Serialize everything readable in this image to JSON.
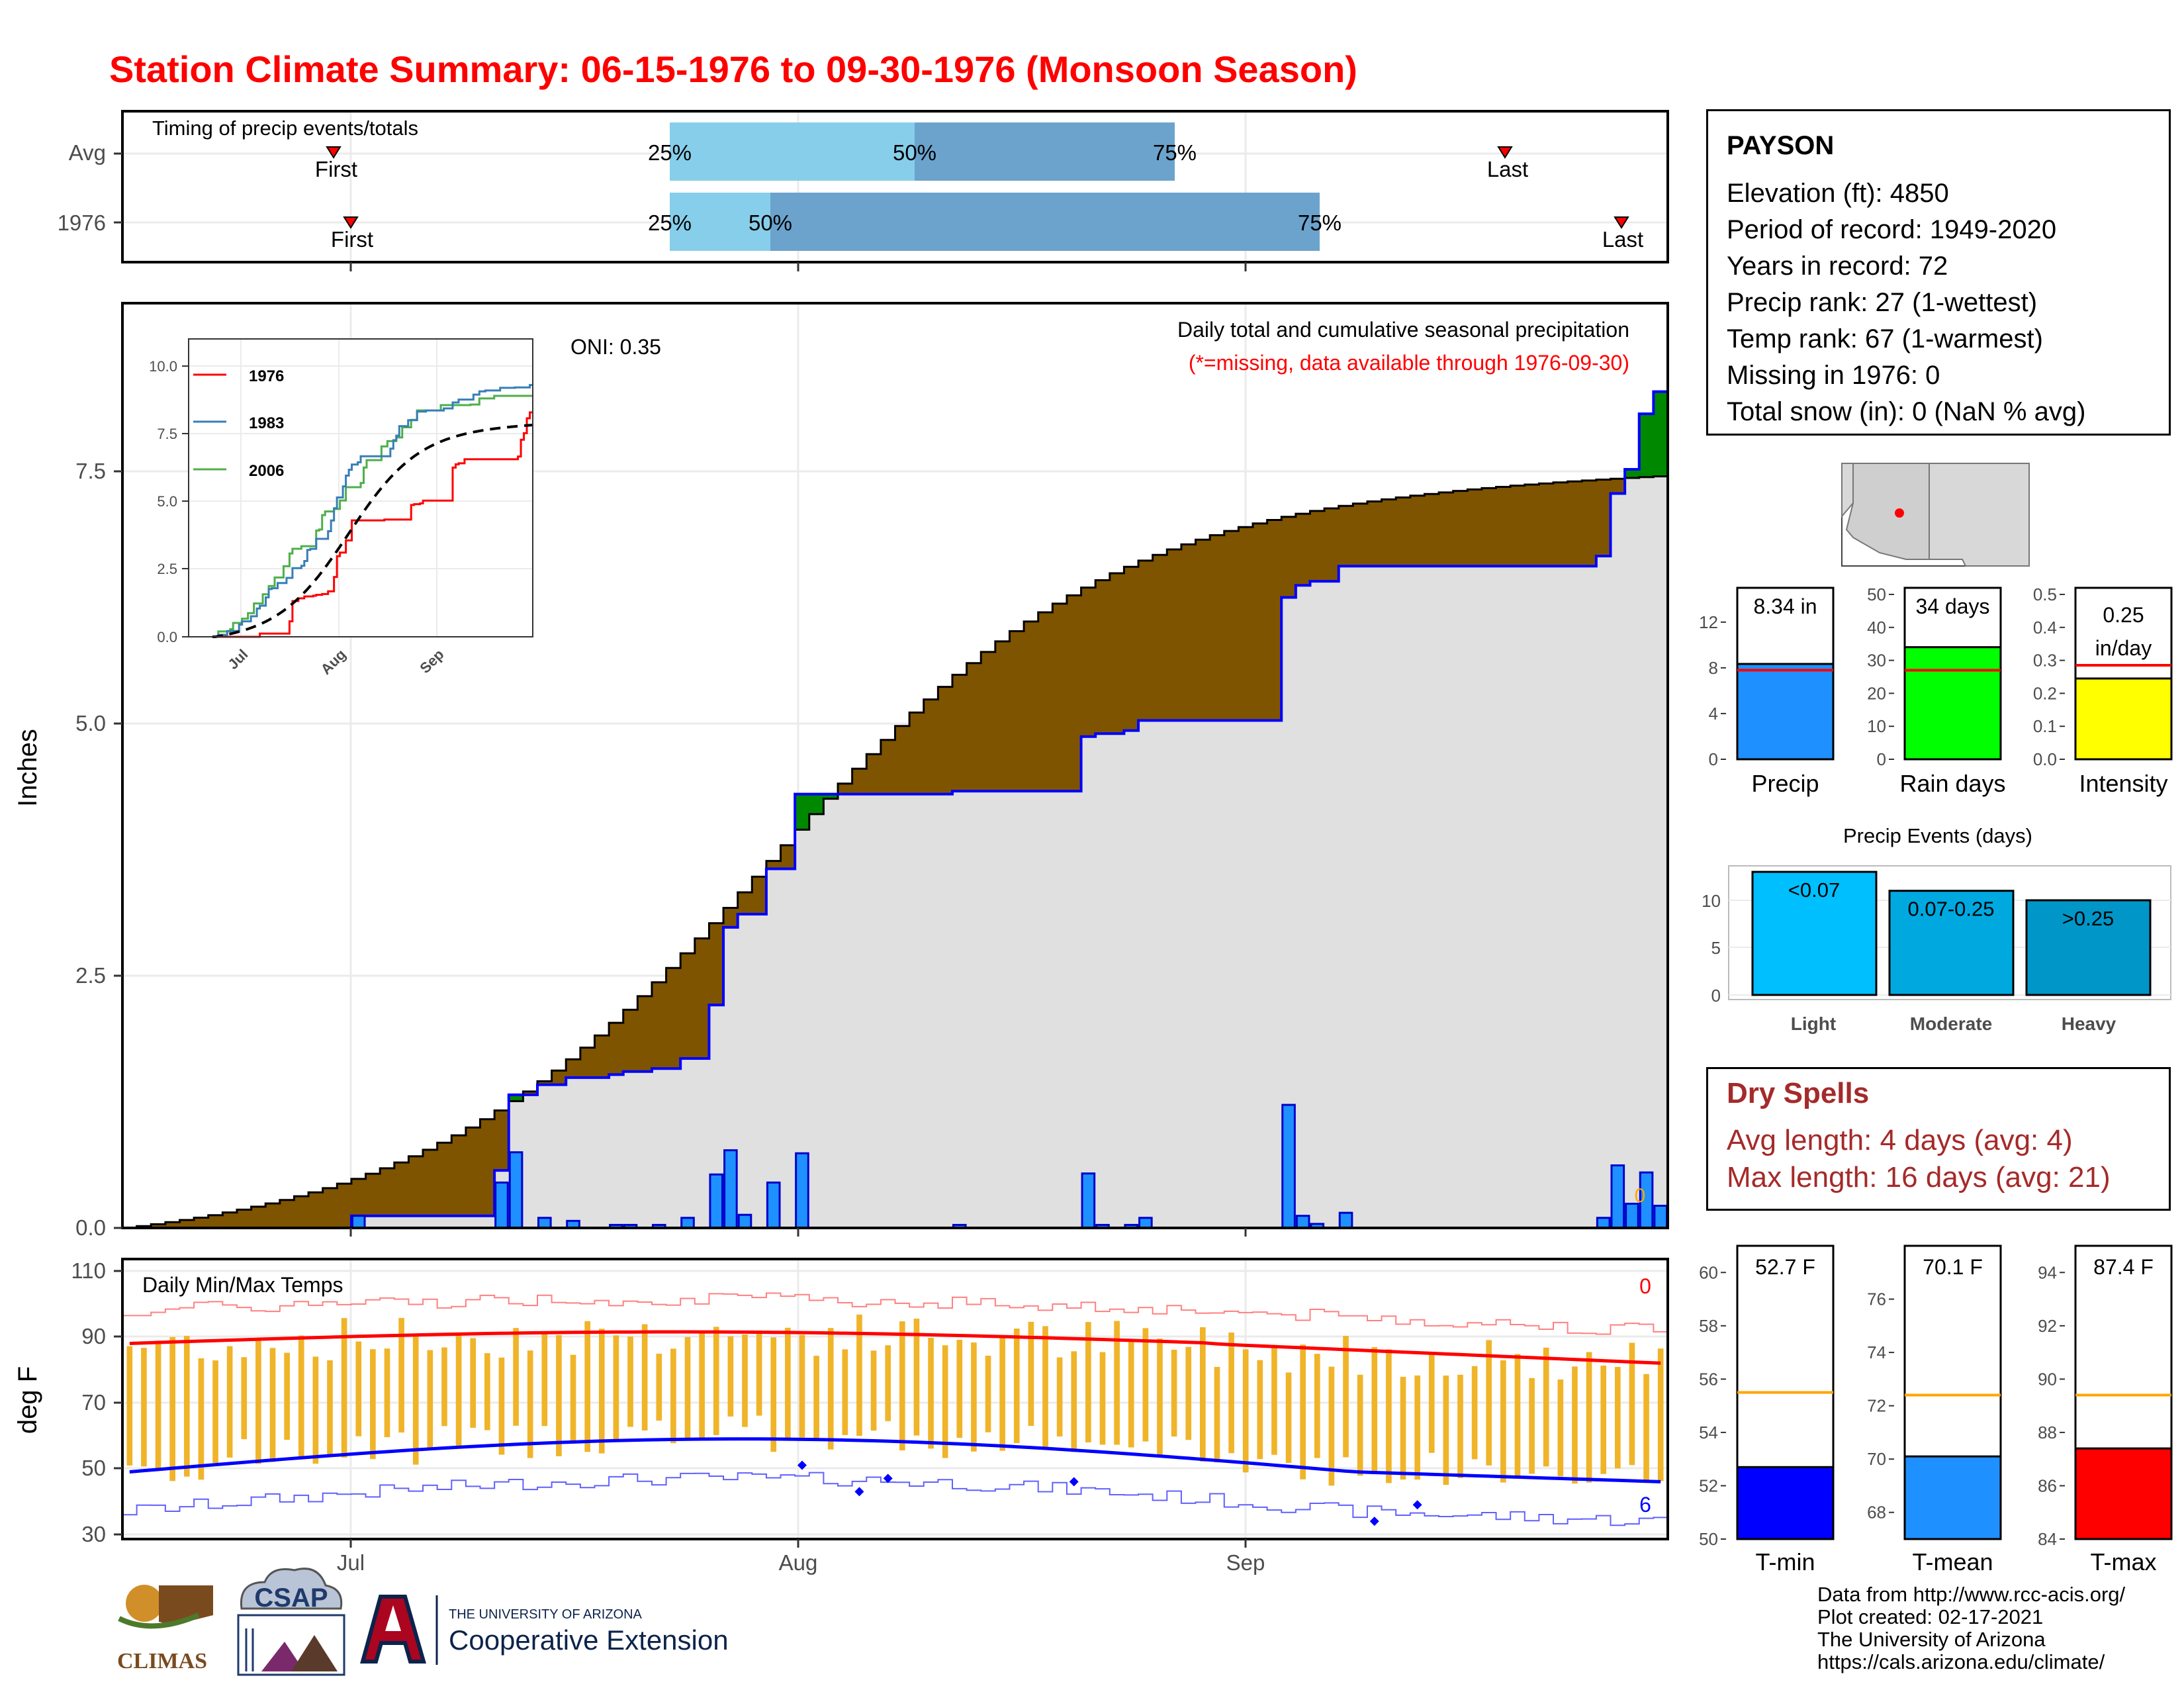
{
  "title": "Station Climate Summary: 06-15-1976 to 09-30-1976 (Monsoon Season)",
  "colors": {
    "title": "#ff0000",
    "light_blue": "#87ceeb",
    "steel_blue": "#6ba3cd",
    "surplus": "#008800",
    "deficit": "#7f5400",
    "cum_area": "#e0e0e0",
    "bar_blue": "#1e90ff",
    "tmin": "#0000ff",
    "tmean": "#1e90ff",
    "tmax": "#ff0000",
    "avg_line": "#ffa500",
    "dry_spells": "#a52a2a",
    "temp_bar": "#f0b429",
    "light": "#00bfff",
    "moderate": "#00a8e0",
    "heavy": "#0096c8"
  },
  "timing": {
    "title": "Timing of precip events/totals",
    "rows": [
      {
        "label": "Avg",
        "first": "First",
        "last": "Last",
        "p25": "25%",
        "p50": "50%",
        "p75": "75%"
      },
      {
        "label": "1976",
        "first": "First",
        "last": "Last",
        "p25": "25%",
        "p50": "50%",
        "p75": "75%"
      }
    ]
  },
  "precip_panel": {
    "oni": "ONI: 0.35",
    "title": "Daily total and cumulative seasonal precipitation",
    "subtitle": "(*=missing, data available through 1976-09-30)",
    "ylabel": "Inches",
    "yticks": [
      "0.0",
      "2.5",
      "5.0",
      "7.5"
    ],
    "zero_label": "0"
  },
  "inset": {
    "yticks": [
      "0.0",
      "2.5",
      "5.0",
      "7.5",
      "10.0"
    ],
    "xticks": [
      "Jul",
      "Aug",
      "Sep"
    ],
    "legend": [
      {
        "name": "1976",
        "color": "#ff0000"
      },
      {
        "name": "1983",
        "color": "#377eb8"
      },
      {
        "name": "2006",
        "color": "#4daf4a"
      }
    ]
  },
  "temp_panel": {
    "title": "Daily Min/Max Temps",
    "ylabel": "deg F",
    "yticks": [
      "30",
      "50",
      "70",
      "90",
      "110"
    ],
    "xticks": [
      "Jul",
      "Aug",
      "Sep"
    ],
    "count_top": "0",
    "count_bottom": "6"
  },
  "station": {
    "name": "PAYSON",
    "lines": [
      "Elevation (ft): 4850",
      "Period of record: 1949-2020",
      "Years in record: 72",
      "Precip rank: 27 (1-wettest)",
      "Temp rank: 67 (1-warmest)",
      "Missing in 1976: 0",
      "Total snow (in): 0 (NaN % avg)"
    ]
  },
  "summary_bars": [
    {
      "label": "Precip",
      "value_text": "8.34 in",
      "value": 8.34,
      "avg": 7.8,
      "ticks": [
        "0",
        "4",
        "8",
        "12"
      ],
      "ymax": 15,
      "color": "#1e90ff"
    },
    {
      "label": "Rain days",
      "value_text": "34 days",
      "value": 34,
      "avg": 27,
      "ticks": [
        "0",
        "10",
        "20",
        "30",
        "40",
        "50"
      ],
      "ymax": 52,
      "color": "#00ff00"
    },
    {
      "label": "Intensity",
      "value_text": "0.25",
      "value_text2": "in/day",
      "value": 0.245,
      "avg": 0.285,
      "ticks": [
        "0.0",
        "0.1",
        "0.2",
        "0.3",
        "0.4",
        "0.5"
      ],
      "ymax": 0.52,
      "color": "#ffff00"
    }
  ],
  "events": {
    "title": "Precip Events (days)",
    "yticks": [
      "0",
      "5",
      "10"
    ],
    "bars": [
      {
        "category": "Light",
        "label": "<0.07",
        "value": 13
      },
      {
        "category": "Moderate",
        "label": "0.07-0.25",
        "value": 11
      },
      {
        "category": "Heavy",
        "label": ">0.25",
        "value": 10
      }
    ]
  },
  "dry_spells": {
    "title": "Dry Spells",
    "lines": [
      "Avg length: 4 days (avg: 4)",
      "Max length: 16 days (avg: 21)"
    ]
  },
  "temp_summary": [
    {
      "label": "T-min",
      "value_text": "52.7 F",
      "value": 52.7,
      "avg": 55.5,
      "ticks": [
        "50",
        "52",
        "54",
        "56",
        "58",
        "60"
      ],
      "ymin": 50,
      "ymax": 61,
      "color": "#0000ff"
    },
    {
      "label": "T-mean",
      "value_text": "70.1 F",
      "value": 70.1,
      "avg": 72.4,
      "ticks": [
        "68",
        "70",
        "72",
        "74",
        "76"
      ],
      "ymin": 67,
      "ymax": 78,
      "color": "#1e90ff"
    },
    {
      "label": "T-max",
      "value_text": "87.4 F",
      "value": 87.4,
      "avg": 89.4,
      "ticks": [
        "84",
        "86",
        "88",
        "90",
        "92",
        "94"
      ],
      "ymin": 84,
      "ymax": 95,
      "color": "#ff0000"
    }
  ],
  "footer": [
    "Data from http://www.rcc-acis.org/",
    "Plot created: 02-17-2021",
    "The University of Arizona",
    "https://cals.arizona.edu/climate/"
  ],
  "logos": {
    "climas": "CLIMAS",
    "csap": "CSAP",
    "ua_line1": "THE UNIVERSITY OF ARIZONA",
    "ua_line2": "Cooperative Extension"
  },
  "chart_data": [
    {
      "type": "line",
      "title": "Daily total and cumulative seasonal precipitation",
      "ylabel": "Inches",
      "ylim": [
        0,
        9.2
      ],
      "x_dates": [
        "1976-06-15",
        "1976-09-30"
      ],
      "daily_precip": [
        {
          "date": "1976-07-01",
          "in": 0.12
        },
        {
          "date": "1976-07-11",
          "in": 0.45
        },
        {
          "date": "1976-07-12",
          "in": 0.75
        },
        {
          "date": "1976-07-14",
          "in": 0.1
        },
        {
          "date": "1976-07-16",
          "in": 0.07
        },
        {
          "date": "1976-07-19",
          "in": 0.03
        },
        {
          "date": "1976-07-20",
          "in": 0.03
        },
        {
          "date": "1976-07-22",
          "in": 0.03
        },
        {
          "date": "1976-07-24",
          "in": 0.1
        },
        {
          "date": "1976-07-26",
          "in": 0.53
        },
        {
          "date": "1976-07-27",
          "in": 0.77
        },
        {
          "date": "1976-07-28",
          "in": 0.13
        },
        {
          "date": "1976-07-30",
          "in": 0.45
        },
        {
          "date": "1976-08-01",
          "in": 0.74
        },
        {
          "date": "1976-08-12",
          "in": 0.03
        },
        {
          "date": "1976-08-21",
          "in": 0.54
        },
        {
          "date": "1976-08-22",
          "in": 0.03
        },
        {
          "date": "1976-08-24",
          "in": 0.03
        },
        {
          "date": "1976-08-25",
          "in": 0.1
        },
        {
          "date": "1976-09-04",
          "in": 1.22
        },
        {
          "date": "1976-09-05",
          "in": 0.12
        },
        {
          "date": "1976-09-06",
          "in": 0.04
        },
        {
          "date": "1976-09-08",
          "in": 0.15
        },
        {
          "date": "1976-09-26",
          "in": 0.1
        },
        {
          "date": "1976-09-27",
          "in": 0.62
        },
        {
          "date": "1976-09-28",
          "in": 0.24
        },
        {
          "date": "1976-09-29",
          "in": 0.55
        },
        {
          "date": "1976-09-30",
          "in": 0.22
        }
      ],
      "cumulative_1976_end": 8.34,
      "cumulative_average_end": 7.45,
      "oni": 0.35
    },
    {
      "type": "line",
      "title": "Daily Min/Max Temps",
      "ylabel": "deg F",
      "ylim": [
        30,
        110
      ],
      "x_dates": [
        "1976-06-15",
        "1976-09-30"
      ],
      "avg_max_start": 88,
      "avg_max_end": 82,
      "avg_min_start": 49,
      "avg_min_end": 46,
      "days_above_record_max": 0,
      "days_below_record_min": 6
    }
  ]
}
